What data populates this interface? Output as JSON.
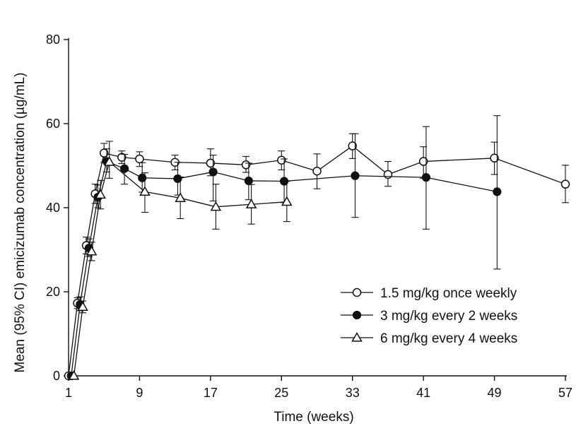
{
  "chart_data": {
    "type": "line",
    "title": "",
    "xlabel": "Time (weeks)",
    "ylabel": "Mean (95% CI) emicizumab concentration (µg/mL)",
    "xlim": [
      1,
      57
    ],
    "ylim": [
      0,
      80
    ],
    "x_ticks": [
      1,
      9,
      17,
      25,
      33,
      41,
      49,
      57
    ],
    "y_ticks": [
      0,
      20,
      40,
      60,
      80
    ],
    "grid": false,
    "legend_position": "bottom-right",
    "series": [
      {
        "name": "1.5 mg/kg once weekly",
        "marker": "circle-open",
        "color": "#111111",
        "x": [
          1,
          2,
          3,
          4,
          5,
          7,
          9,
          13,
          17,
          21,
          25,
          29,
          33,
          37,
          41,
          49,
          57
        ],
        "y": [
          0,
          17.3,
          31.0,
          43.3,
          53.0,
          52.0,
          51.6,
          50.8,
          50.6,
          50.2,
          51.3,
          48.7,
          54.7,
          47.9,
          51.0,
          51.8,
          45.6
        ],
        "ci_low": [
          0,
          16.0,
          29.0,
          41.0,
          50.8,
          50.5,
          49.8,
          49.0,
          47.6,
          48.4,
          49.0,
          44.5,
          51.7,
          45.1,
          47.0,
          47.9,
          41.2
        ],
        "ci_high": [
          0,
          18.6,
          33.0,
          45.6,
          55.3,
          53.5,
          53.3,
          52.5,
          54.0,
          52.2,
          53.5,
          52.8,
          57.6,
          51.0,
          54.5,
          55.6,
          50.1
        ]
      },
      {
        "name": "3 mg/kg every 2 weeks",
        "marker": "circle-filled",
        "color": "#111111",
        "x": [
          1.3,
          2.3,
          3.3,
          4.3,
          5.3,
          7.3,
          9.3,
          13.3,
          17.3,
          21.3,
          25.3,
          33.3,
          41.3,
          49.3
        ],
        "y": [
          0,
          17.0,
          30.4,
          42.5,
          51.0,
          49.3,
          47.1,
          46.9,
          48.5,
          46.4,
          46.3,
          47.6,
          47.2,
          43.8
        ],
        "ci_low": [
          0,
          15.5,
          28.4,
          40.0,
          48.5,
          45.6,
          43.7,
          43.0,
          41.6,
          41.9,
          41.2,
          37.7,
          34.9,
          25.4
        ],
        "ci_high": [
          0,
          18.8,
          32.6,
          45.4,
          54.0,
          52.7,
          50.7,
          50.8,
          52.5,
          50.6,
          51.6,
          57.6,
          59.3,
          61.9
        ]
      },
      {
        "name": "6 mg/kg every 4 weeks",
        "marker": "triangle-open",
        "color": "#111111",
        "x": [
          1.6,
          2.6,
          3.6,
          4.6,
          5.6,
          9.6,
          13.6,
          17.6,
          21.6,
          25.6
        ],
        "y": [
          0,
          16.4,
          29.6,
          43.1,
          50.9,
          43.8,
          42.3,
          40.2,
          40.8,
          41.4
        ],
        "ci_low": [
          0,
          15.0,
          27.4,
          39.7,
          47.0,
          38.9,
          37.4,
          34.9,
          36.1,
          36.7
        ],
        "ci_high": [
          0,
          17.8,
          31.8,
          46.5,
          55.8,
          48.3,
          47.3,
          45.6,
          45.5,
          46.3
        ]
      }
    ]
  }
}
